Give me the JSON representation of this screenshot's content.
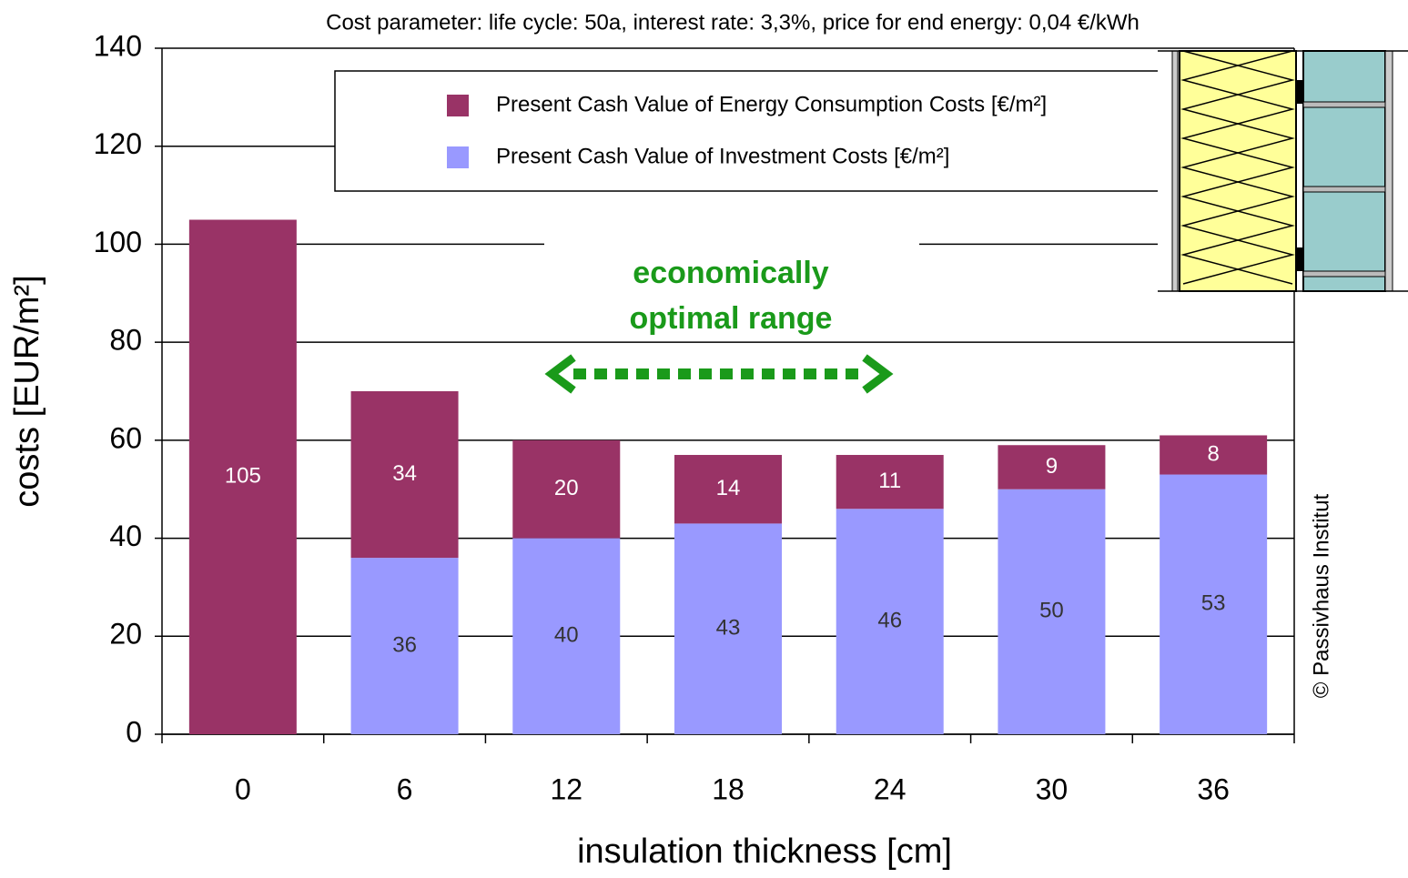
{
  "chart_data": {
    "type": "stacked_bar",
    "title": "Cost parameter: life cycle: 50a, interest rate: 3,3%, price for end energy: 0,04 €/kWh",
    "x_label": "insulation thickness [cm]",
    "y_label": "costs [EUR/m²]",
    "annotation": [
      "economically",
      "optimal range"
    ],
    "credit": "© Passivhaus Institut",
    "categories": [
      "0",
      "6",
      "12",
      "18",
      "24",
      "30",
      "36"
    ],
    "series": [
      {
        "name": "Present Cash Value of Investment Costs [€/m²]",
        "color": "#9999ff",
        "values": [
          null,
          36,
          40,
          43,
          46,
          50,
          53
        ]
      },
      {
        "name": "Present Cash Value of Energy Consumption Costs [€/m²]",
        "color": "#993366",
        "values": [
          105,
          34,
          20,
          14,
          11,
          9,
          8
        ]
      }
    ],
    "ylim": [
      0,
      140
    ],
    "yticks": [
      0,
      20,
      40,
      60,
      80,
      100,
      120,
      140
    ],
    "grid": true
  }
}
